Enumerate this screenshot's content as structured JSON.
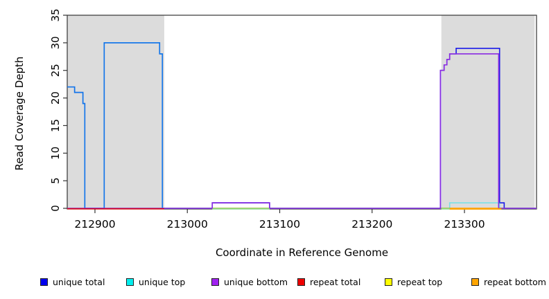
{
  "figure": {
    "xlabel": "Coordinate in Reference Genome",
    "ylabel": "Read Coverage Depth"
  },
  "chart_data": {
    "type": "line",
    "subtype": "step-coverage-plot",
    "title": "",
    "xlabel": "Coordinate in Reference Genome",
    "ylabel": "Read Coverage Depth",
    "xlim": [
      212870,
      213378
    ],
    "ylim": [
      0,
      35
    ],
    "x_ticks": [
      212900,
      213000,
      213100,
      213200,
      213300
    ],
    "y_ticks": [
      0,
      5,
      10,
      15,
      20,
      25,
      30,
      35
    ],
    "grid": false,
    "legend_position": "bottom",
    "shaded_regions": [
      {
        "name": "repeat-region-left",
        "x0": 212870,
        "x1": 212975,
        "color": "#DCDCDC"
      },
      {
        "name": "repeat-region-right",
        "x0": 213275,
        "x1": 213376,
        "color": "#DCDCDC"
      }
    ],
    "series": [
      {
        "name": "unique total",
        "color": "#1A1AE8",
        "opacity": 1,
        "points": [
          [
            212870,
            22
          ],
          [
            212878,
            21
          ],
          [
            212887,
            19
          ],
          [
            212889,
            0
          ],
          [
            212910,
            30
          ],
          [
            212970,
            28
          ],
          [
            212973,
            0
          ],
          [
            213027,
            1
          ],
          [
            213089,
            0
          ],
          [
            213274,
            25
          ],
          [
            213278,
            26
          ],
          [
            213281,
            27
          ],
          [
            213284,
            28
          ],
          [
            213291,
            29
          ],
          [
            213338,
            1
          ],
          [
            213343,
            0
          ],
          [
            213378,
            0
          ]
        ]
      },
      {
        "name": "unique top",
        "color": "#00E5EE",
        "opacity": 0.45,
        "points": [
          [
            212870,
            22
          ],
          [
            212878,
            21
          ],
          [
            212887,
            19
          ],
          [
            212889,
            0
          ],
          [
            212910,
            30
          ],
          [
            212970,
            28
          ],
          [
            212973,
            0
          ],
          [
            213284,
            1
          ],
          [
            213338,
            0
          ],
          [
            213378,
            0
          ]
        ]
      },
      {
        "name": "unique bottom",
        "color": "#8A2BE2",
        "opacity": 1,
        "points": [
          [
            212870,
            0
          ],
          [
            213027,
            1
          ],
          [
            213089,
            0
          ],
          [
            213274,
            25
          ],
          [
            213278,
            26
          ],
          [
            213281,
            27
          ],
          [
            213284,
            28
          ],
          [
            213337,
            0
          ],
          [
            213378,
            0
          ]
        ]
      },
      {
        "name": "repeat total",
        "color": "#E60000",
        "opacity": 1,
        "points": [
          [
            212870,
            0
          ],
          [
            213378,
            0
          ]
        ]
      },
      {
        "name": "repeat top",
        "color": "#FFFF00",
        "opacity": 1,
        "points": [
          [
            212870,
            0
          ],
          [
            213378,
            0
          ]
        ]
      },
      {
        "name": "repeat bottom",
        "color": "#FFA500",
        "opacity": 1,
        "points": [
          [
            212870,
            0
          ],
          [
            213378,
            0
          ]
        ]
      }
    ],
    "baseline_overlays": [
      {
        "name": "repeat-total-visible",
        "color": "#E60000",
        "x0": 212870,
        "x1": 212975,
        "width": 1.4
      },
      {
        "name": "top-bottom-zero-mix",
        "color": "#8FE98F",
        "x0": 213027,
        "x1": 213089,
        "width": 1.4
      },
      {
        "name": "top-bottom-zero-mix",
        "color": "#8FE98F",
        "x0": 213275,
        "x1": 213284,
        "width": 1.4
      },
      {
        "name": "repeat-bottom-visible",
        "color": "#FFA500",
        "x0": 213284,
        "x1": 213340,
        "width": 2.2
      }
    ],
    "legend": [
      {
        "label": "unique total",
        "color": "#0000EE"
      },
      {
        "label": "unique top",
        "color": "#00EEEE"
      },
      {
        "label": "unique bottom",
        "color": "#A020F0"
      },
      {
        "label": "repeat total",
        "color": "#EE0000"
      },
      {
        "label": "repeat top",
        "color": "#FFFF00"
      },
      {
        "label": "repeat bottom",
        "color": "#FFA500"
      }
    ]
  }
}
